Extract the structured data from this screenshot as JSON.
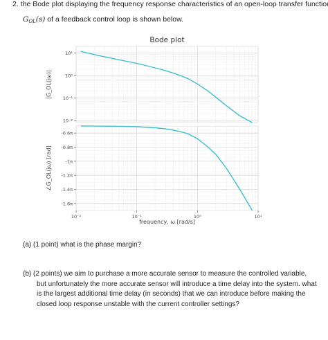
{
  "question": {
    "number_prefix": "2.",
    "line1": "the Bode plot displaying the frequency response characteristics of an open-loop transfer function",
    "tf_symbol": "G",
    "tf_sub": "OL",
    "tf_arg": "(s)",
    "line2_rest": "of a feedback control loop is shown below."
  },
  "parts": {
    "a": "(a)  (1 point)  what is the phase margin?",
    "b_line1": "(b)  (2 points)  we aim to purchase a more accurate sensor to measure the controlled variable,",
    "b_line2": "but unfortunately the more accurate sensor will introduce a time delay into the system. what",
    "b_line3": "is the largest additional time delay (in seconds) that we can introduce before making the",
    "b_line4": "closed loop response unstable with the current controller settings?"
  },
  "chart_data": [
    {
      "type": "line",
      "title": "Bode plot",
      "ylabel": "|G_OL(jω)|",
      "xscale": "log",
      "yscale": "log",
      "xlim": [
        0.01,
        10
      ],
      "ylim": [
        0.008,
        20
      ],
      "y_tick_labels": [
        "10¹",
        "10⁰",
        "10⁻¹",
        "10⁻²"
      ],
      "y_tick_values": [
        10,
        1,
        0.1,
        0.01
      ],
      "series": [
        {
          "color": "#3cbfcf",
          "x": [
            0.012,
            0.02,
            0.05,
            0.1,
            0.2,
            0.3,
            0.5,
            0.7,
            1,
            1.5,
            2,
            3,
            5,
            8
          ],
          "y": [
            12.0,
            8.6,
            5.1,
            3.5,
            2.2,
            1.65,
            1.05,
            0.72,
            0.42,
            0.2,
            0.11,
            0.045,
            0.016,
            0.008
          ]
        }
      ],
      "grid": true
    },
    {
      "type": "line",
      "ylabel": "∠G_OL(jω) [rad]",
      "xlabel": "frequency, ω [rad/s]",
      "xscale": "log",
      "xlim": [
        0.01,
        10
      ],
      "ylim": [
        -1.7,
        -0.5
      ],
      "y_tick_labels": [
        "-0.6π",
        "-0.8π",
        "-1π",
        "-1.2π",
        "-1.4π",
        "-1.6π"
      ],
      "y_tick_values": [
        -0.6,
        -0.8,
        -1.0,
        -1.2,
        -1.4,
        -1.6
      ],
      "x_tick_labels": [
        "10⁻²",
        "10⁻¹",
        "10⁰",
        "10¹"
      ],
      "x_tick_values": [
        0.01,
        0.1,
        1,
        10
      ],
      "series": [
        {
          "color": "#3cbfcf",
          "x": [
            0.012,
            0.02,
            0.05,
            0.1,
            0.2,
            0.3,
            0.5,
            0.7,
            1,
            1.5,
            2,
            3,
            5,
            8
          ],
          "y": [
            -0.5,
            -0.501,
            -0.504,
            -0.51,
            -0.525,
            -0.54,
            -0.575,
            -0.61,
            -0.68,
            -0.8,
            -0.9,
            -1.1,
            -1.4,
            -1.7
          ]
        }
      ],
      "grid": true
    }
  ]
}
